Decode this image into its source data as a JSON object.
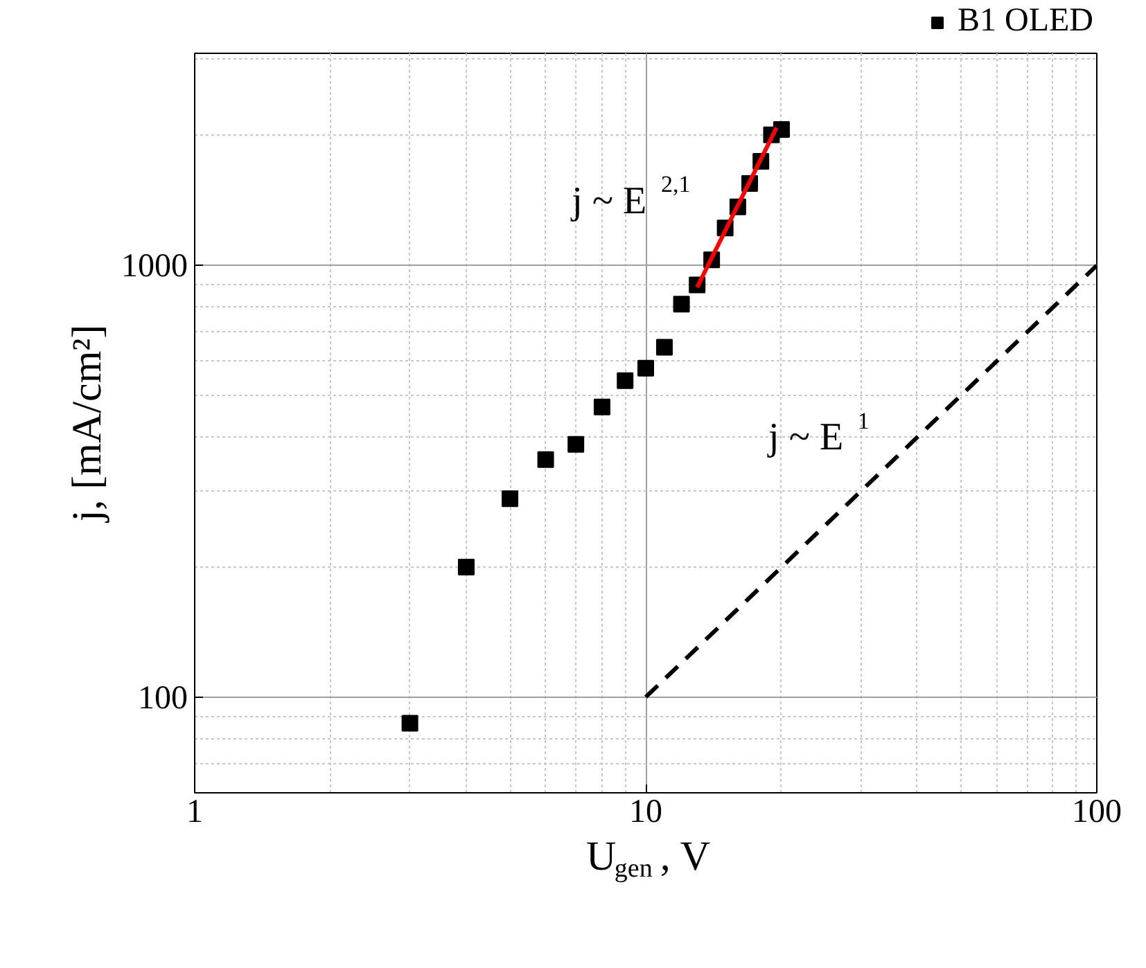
{
  "chart_data": {
    "type": "scatter",
    "xlabel": "U$_{gen}$, V",
    "ylabel": "j, [mA/cm²]",
    "log": "xy",
    "grid": true,
    "legend": "top right",
    "xlim": [
      1,
      100
    ],
    "xticks": [
      1,
      10,
      100
    ],
    "ylim": [
      60,
      3100
    ],
    "yticks": [
      100,
      1000
    ],
    "series": [
      {
        "name": "B1 OLED",
        "marker": "square",
        "color": "#000000",
        "x": [
          3,
          4,
          5,
          6,
          7,
          8,
          9,
          10,
          11,
          12,
          13,
          14,
          15,
          16,
          17,
          18,
          19,
          20
        ],
        "values": [
          87,
          200,
          288,
          355,
          385,
          470,
          541,
          578,
          646,
          813,
          901,
          1030,
          1221,
          1366,
          1548,
          1742,
          2006,
          2065
        ]
      },
      {
        "type": "line",
        "color": "#ff0000",
        "line_style": "solid",
        "x": [
          13,
          19.5
        ],
        "values": [
          890,
          2085
        ]
      },
      {
        "type": "line",
        "color": "#000000",
        "line_style": "dashed",
        "x": [
          10,
          100
        ],
        "values": [
          100,
          1000
        ]
      }
    ],
    "annotations": [
      "j ~ E$^{2,1}$",
      "j ~ E$^{1}$"
    ]
  }
}
